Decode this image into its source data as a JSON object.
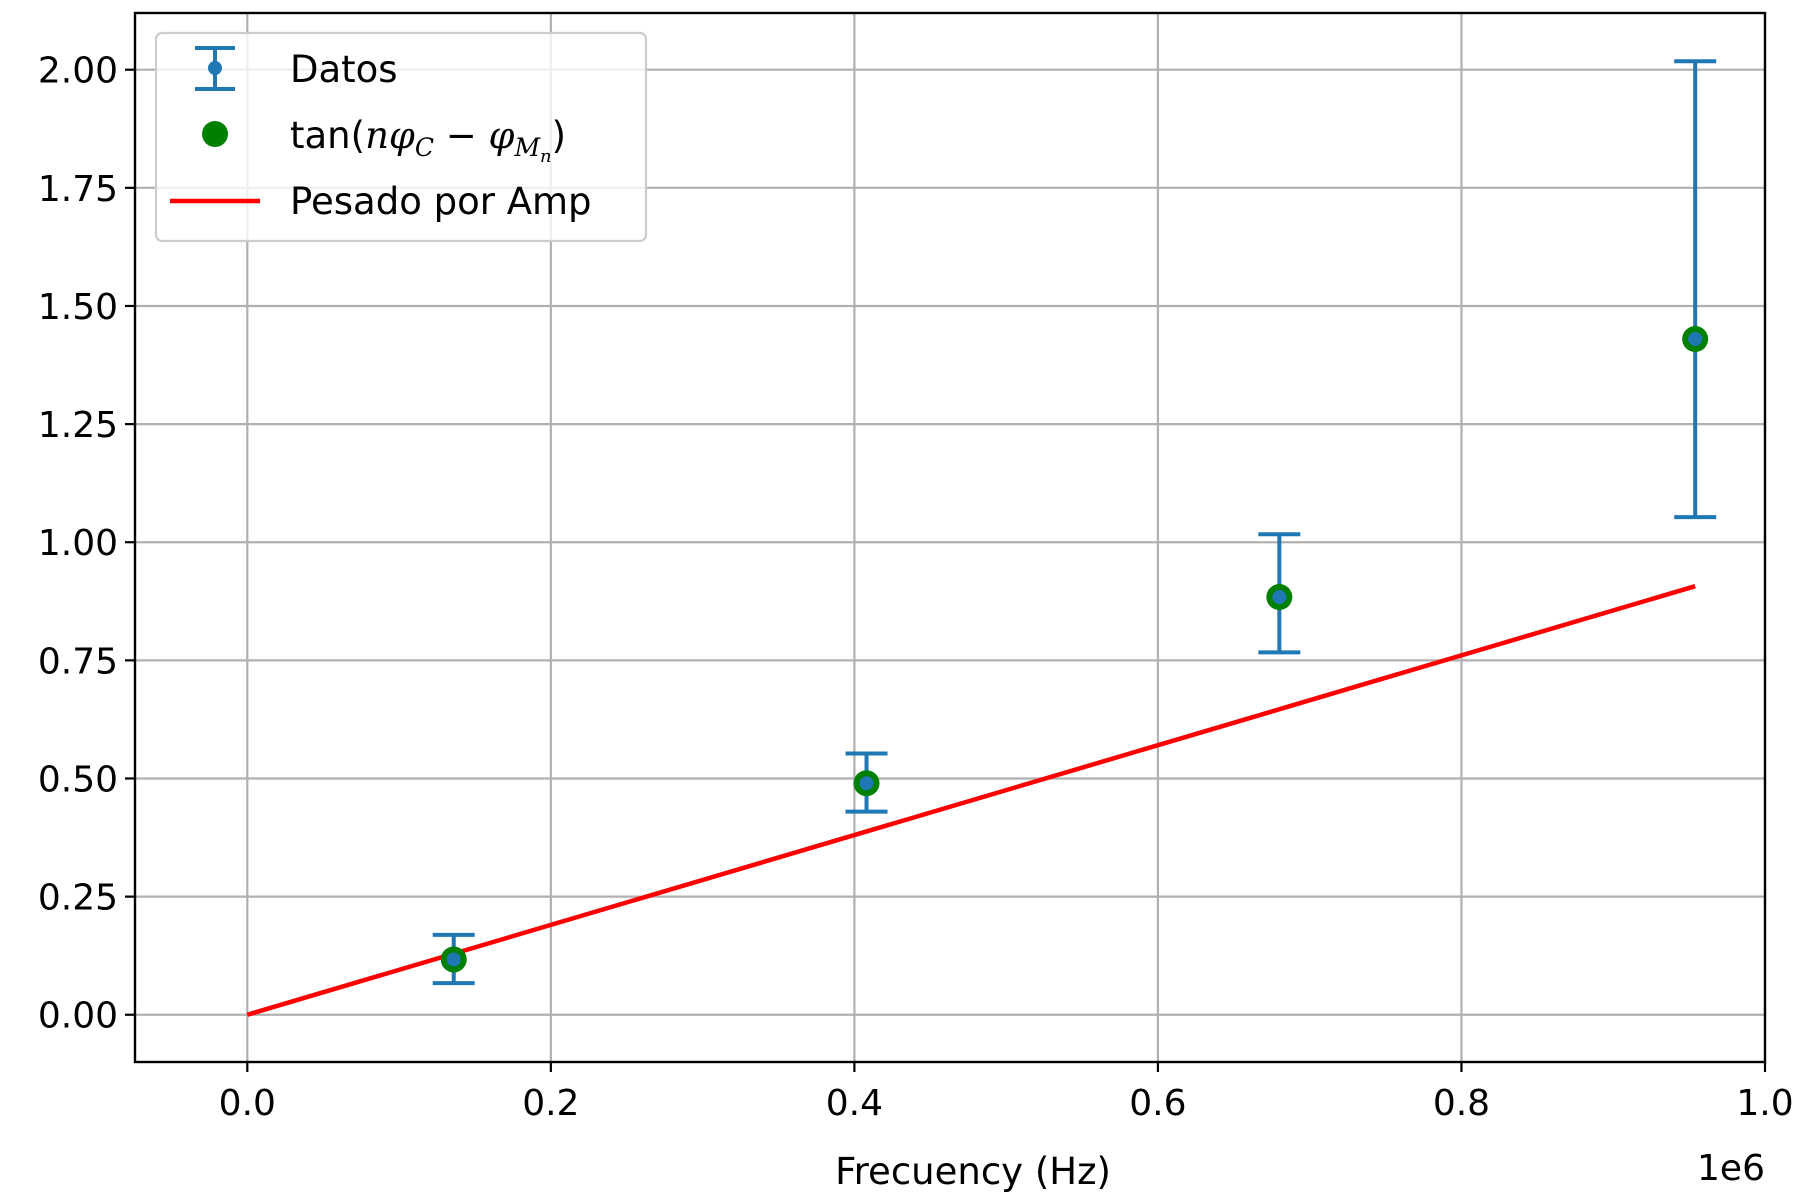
{
  "chart_data": {
    "type": "scatter",
    "xlabel": "Frecuency (Hz)",
    "x_offset_label": "1e6",
    "xlim": [
      -0.074,
      1.0
    ],
    "ylim": [
      -0.1,
      2.12
    ],
    "x_ticks": [
      0.0,
      0.2,
      0.4,
      0.6,
      0.8,
      1.0
    ],
    "x_tick_labels": [
      "0.0",
      "0.2",
      "0.4",
      "0.6",
      "0.8",
      "1.0"
    ],
    "y_ticks": [
      0.0,
      0.25,
      0.5,
      0.75,
      1.0,
      1.25,
      1.5,
      1.75,
      2.0
    ],
    "y_tick_labels": [
      "0.00",
      "0.25",
      "0.50",
      "0.75",
      "1.00",
      "1.25",
      "1.50",
      "1.75",
      "2.00"
    ],
    "grid": true,
    "legend_position": "top-left",
    "series": [
      {
        "name": "Datos",
        "kind": "errorbar",
        "color": "#1f77b4",
        "x": [
          0.136,
          0.408,
          0.68,
          0.954
        ],
        "y": [
          0.117,
          0.49,
          0.884,
          1.43
        ],
        "yerr_low": [
          0.067,
          0.43,
          0.767,
          1.053
        ],
        "yerr_high": [
          0.169,
          0.553,
          1.017,
          2.018
        ]
      },
      {
        "name": "tan(nφC − φMn)",
        "kind": "scatter",
        "color": "#008000",
        "x": [
          0.136,
          0.408,
          0.68,
          0.954
        ],
        "y": [
          0.117,
          0.49,
          0.884,
          1.43
        ]
      },
      {
        "name": "Pesado por Amp",
        "kind": "line",
        "color": "#ff0000",
        "x": [
          0.0,
          0.954
        ],
        "y": [
          0.0,
          0.907
        ]
      }
    ],
    "legend": {
      "datos_label": "Datos",
      "tan_prefix": "tan(",
      "tan_n": "n",
      "tan_phi": "φ",
      "tan_sub_c": "C",
      "tan_minus": " − ",
      "tan_sub_m": "M",
      "tan_sub_n": "n",
      "tan_suffix": ")",
      "fit_label": "Pesado por Amp"
    }
  }
}
